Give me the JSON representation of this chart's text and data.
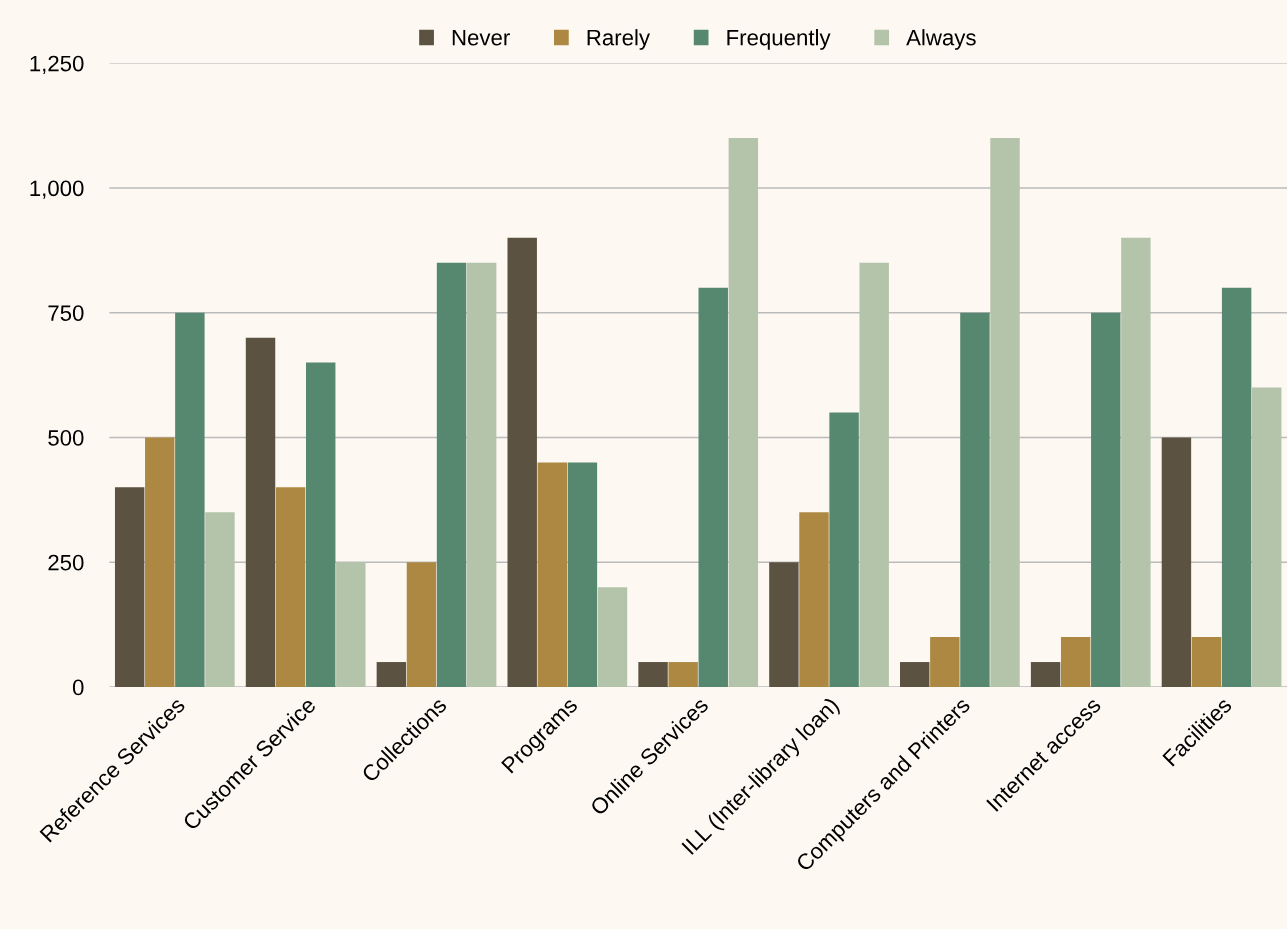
{
  "chart_data": {
    "type": "bar",
    "categories": [
      "Reference Services",
      "Customer Service",
      "Collections",
      "Programs",
      "Online Services",
      "ILL (Inter-library loan)",
      "Computers and Printers",
      "Internet access",
      "Facilities"
    ],
    "series": [
      {
        "name": "Never",
        "color": "#5c5241",
        "values": [
          400,
          700,
          50,
          900,
          50,
          250,
          50,
          50,
          500
        ]
      },
      {
        "name": "Rarely",
        "color": "#ad8842",
        "values": [
          500,
          400,
          250,
          450,
          50,
          350,
          100,
          100,
          100
        ]
      },
      {
        "name": "Frequently",
        "color": "#56876f",
        "values": [
          750,
          650,
          850,
          450,
          800,
          550,
          750,
          750,
          800
        ]
      },
      {
        "name": "Always",
        "color": "#b3c4ab",
        "values": [
          350,
          250,
          850,
          200,
          1100,
          850,
          1100,
          900,
          600
        ]
      }
    ],
    "ylim": [
      0,
      1250
    ],
    "yticks": [
      {
        "value": 0,
        "label": "0"
      },
      {
        "value": 250,
        "label": "250"
      },
      {
        "value": 500,
        "label": "500"
      },
      {
        "value": 750,
        "label": "750"
      },
      {
        "value": 1000,
        "label": "1,000"
      },
      {
        "value": 1250,
        "label": "1,250"
      }
    ],
    "grid": "y",
    "legend": "top"
  }
}
